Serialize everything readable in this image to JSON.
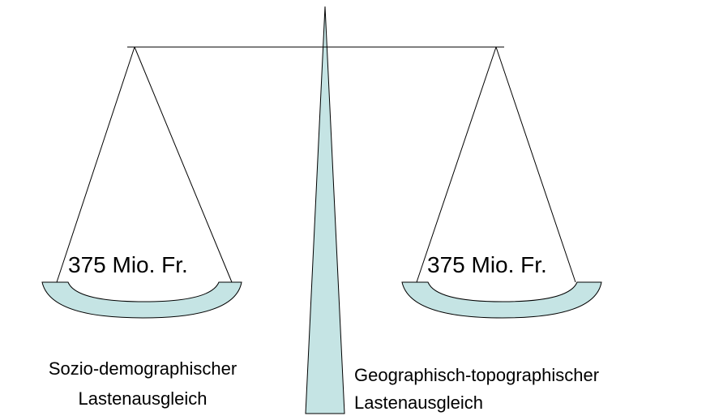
{
  "left_pan": {
    "amount": "375 Mio. Fr.",
    "caption_line1": "Sozio-demographischer",
    "caption_line2": "Lastenausgleich"
  },
  "right_pan": {
    "amount": "375 Mio. Fr.",
    "caption_line1": "Geographisch-topographischer",
    "caption_line2": "Lastenausgleich"
  },
  "colors": {
    "fill": "#c5e4e4",
    "stroke": "#000000"
  }
}
